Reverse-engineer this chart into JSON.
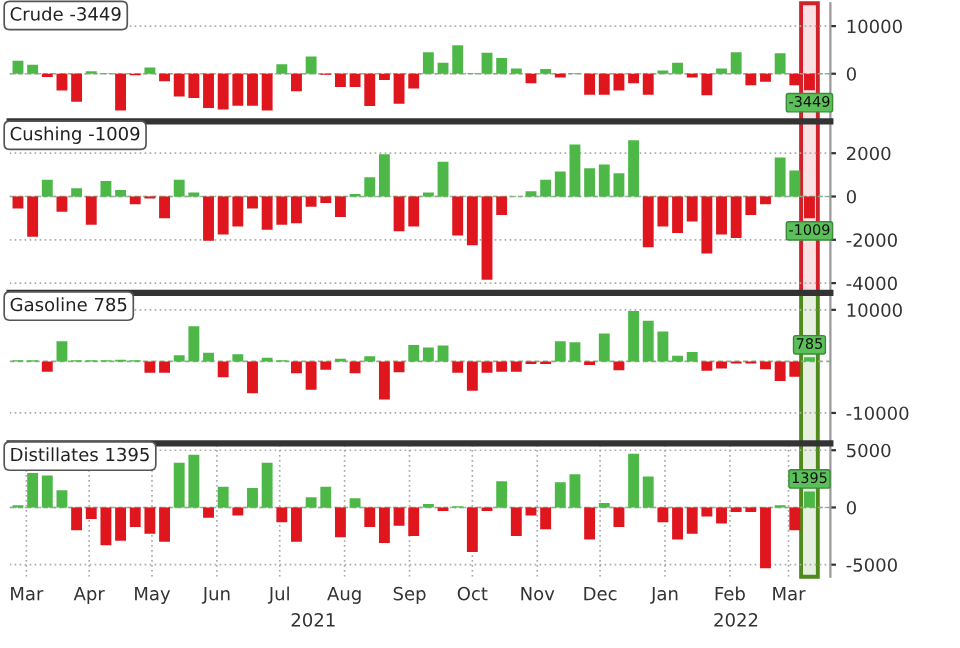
{
  "chart_data": [
    {
      "type": "bar",
      "title": "Crude -3449",
      "x": [
        "2021-03-12",
        "2021-03-19",
        "2021-03-26",
        "2021-04-02",
        "2021-04-09",
        "2021-04-16",
        "2021-04-23",
        "2021-04-30",
        "2021-05-07",
        "2021-05-14",
        "2021-05-21",
        "2021-05-28",
        "2021-06-04",
        "2021-06-11",
        "2021-06-18",
        "2021-06-25",
        "2021-07-02",
        "2021-07-09",
        "2021-07-16",
        "2021-07-23",
        "2021-07-30",
        "2021-08-06",
        "2021-08-13",
        "2021-08-20",
        "2021-08-27",
        "2021-09-03",
        "2021-09-10",
        "2021-09-17",
        "2021-09-24",
        "2021-10-01",
        "2021-10-08",
        "2021-10-15",
        "2021-10-22",
        "2021-10-29",
        "2021-11-05",
        "2021-11-12",
        "2021-11-19",
        "2021-11-26",
        "2021-12-03",
        "2021-12-10",
        "2021-12-17",
        "2021-12-24",
        "2021-12-31",
        "2022-01-07",
        "2022-01-14",
        "2022-01-21",
        "2022-01-28",
        "2022-02-04",
        "2022-02-11",
        "2022-02-18",
        "2022-02-25",
        "2022-03-04",
        "2022-03-11",
        "2022-03-18",
        "2022-03-25"
      ],
      "values": [
        2700,
        1900,
        -700,
        -3500,
        -5900,
        500,
        100,
        -7700,
        -300,
        1300,
        -1600,
        -4800,
        -5100,
        -7200,
        -7500,
        -6700,
        -6700,
        -7700,
        2000,
        -3700,
        3600,
        -200,
        -2800,
        -2800,
        -6800,
        -1300,
        -6300,
        -3100,
        4500,
        2300,
        6000,
        100,
        4400,
        3300,
        1100,
        -2000,
        1000,
        -800,
        100,
        -4400,
        -4400,
        -3500,
        -2000,
        -4400,
        700,
        2300,
        -800,
        -4500,
        1100,
        4500,
        -2400,
        -1700,
        4300,
        -2400,
        -3449
      ],
      "colors": [
        "#4db848",
        "#4db848",
        "#e0161e",
        "#e0161e",
        "#e0161e",
        "#4db848",
        "#4db848",
        "#e0161e",
        "#e0161e",
        "#4db848",
        "#e0161e",
        "#e0161e",
        "#e0161e",
        "#e0161e",
        "#e0161e",
        "#e0161e",
        "#e0161e",
        "#e0161e",
        "#4db848",
        "#e0161e",
        "#4db848",
        "#e0161e",
        "#e0161e",
        "#e0161e",
        "#e0161e",
        "#e0161e",
        "#e0161e",
        "#e0161e",
        "#4db848",
        "#4db848",
        "#4db848",
        "#4db848",
        "#4db848",
        "#4db848",
        "#4db848",
        "#e0161e",
        "#4db848",
        "#e0161e",
        "#4db848",
        "#e0161e",
        "#e0161e",
        "#e0161e",
        "#e0161e",
        "#e0161e",
        "#4db848",
        "#4db848",
        "#e0161e",
        "#e0161e",
        "#4db848",
        "#4db848",
        "#e0161e",
        "#e0161e",
        "#4db848",
        "#e0161e",
        "#e0161e"
      ],
      "value_labels": [
        null,
        null,
        null,
        null,
        null,
        null,
        null,
        null,
        null,
        null,
        null,
        null,
        null,
        null,
        null,
        null,
        null,
        null,
        null,
        null,
        null,
        null,
        null,
        null,
        null,
        null,
        null,
        null,
        null,
        null,
        null,
        null,
        null,
        null,
        null,
        null,
        null,
        null,
        null,
        null,
        null,
        null,
        null,
        null,
        null,
        null,
        null,
        null,
        null,
        null,
        null,
        null,
        null,
        null,
        "-3449"
      ],
      "xlim": [
        "2021-03-08",
        "2022-04-04"
      ],
      "ylim": [
        -10000,
        14800
      ],
      "yticks": [
        10000,
        0
      ],
      "tick_labels": "y",
      "grid": true,
      "ref_lines": [
        {
          "axis": "y",
          "value": 0,
          "color": "#88b088",
          "line_style": "dashed"
        }
      ],
      "bands": [
        {
          "axis": "x",
          "from": "2022-03-21",
          "to": "2022-03-29",
          "color": "#d0202a"
        }
      ]
    },
    {
      "type": "bar",
      "title": "Cushing -1009",
      "x": [
        "2021-03-12",
        "2021-03-19",
        "2021-03-26",
        "2021-04-02",
        "2021-04-09",
        "2021-04-16",
        "2021-04-23",
        "2021-04-30",
        "2021-05-07",
        "2021-05-14",
        "2021-05-21",
        "2021-05-28",
        "2021-06-04",
        "2021-06-11",
        "2021-06-18",
        "2021-06-25",
        "2021-07-02",
        "2021-07-09",
        "2021-07-16",
        "2021-07-23",
        "2021-07-30",
        "2021-08-06",
        "2021-08-13",
        "2021-08-20",
        "2021-08-27",
        "2021-09-03",
        "2021-09-10",
        "2021-09-17",
        "2021-09-24",
        "2021-10-01",
        "2021-10-08",
        "2021-10-15",
        "2021-10-22",
        "2021-10-29",
        "2021-11-05",
        "2021-11-12",
        "2021-11-19",
        "2021-11-26",
        "2021-12-03",
        "2021-12-10",
        "2021-12-17",
        "2021-12-24",
        "2021-12-31",
        "2022-01-07",
        "2022-01-14",
        "2022-01-21",
        "2022-01-28",
        "2022-02-04",
        "2022-02-11",
        "2022-02-18",
        "2022-02-25",
        "2022-03-04",
        "2022-03-11",
        "2022-03-18",
        "2022-03-25"
      ],
      "values": [
        -560,
        -1860,
        770,
        -710,
        380,
        -1300,
        710,
        300,
        -360,
        -90,
        -1010,
        770,
        180,
        -2040,
        -1750,
        -1390,
        -560,
        -1540,
        -1300,
        -1240,
        -470,
        -300,
        -950,
        120,
        890,
        1950,
        -1600,
        -1390,
        180,
        1600,
        -1800,
        -2250,
        -3850,
        -860,
        null,
        240,
        770,
        1150,
        2400,
        1300,
        1480,
        1070,
        2600,
        -2340,
        -1390,
        -1690,
        -1150,
        -2630,
        -1750,
        -1920,
        -860,
        -360,
        1800,
        1200,
        -1009
      ],
      "colors": [
        "#e0161e",
        "#e0161e",
        "#4db848",
        "#e0161e",
        "#4db848",
        "#e0161e",
        "#4db848",
        "#4db848",
        "#e0161e",
        "#e0161e",
        "#e0161e",
        "#4db848",
        "#4db848",
        "#e0161e",
        "#e0161e",
        "#e0161e",
        "#e0161e",
        "#e0161e",
        "#e0161e",
        "#e0161e",
        "#e0161e",
        "#e0161e",
        "#e0161e",
        "#4db848",
        "#4db848",
        "#4db848",
        "#e0161e",
        "#e0161e",
        "#4db848",
        "#4db848",
        "#e0161e",
        "#e0161e",
        "#e0161e",
        "#e0161e",
        "#4db848",
        "#4db848",
        "#4db848",
        "#4db848",
        "#4db848",
        "#4db848",
        "#4db848",
        "#4db848",
        "#4db848",
        "#e0161e",
        "#e0161e",
        "#e0161e",
        "#e0161e",
        "#e0161e",
        "#e0161e",
        "#e0161e",
        "#e0161e",
        "#e0161e",
        "#4db848",
        "#4db848",
        "#e0161e"
      ],
      "value_labels": [
        null,
        null,
        null,
        null,
        null,
        null,
        null,
        null,
        null,
        null,
        null,
        null,
        null,
        null,
        null,
        null,
        null,
        null,
        null,
        null,
        null,
        null,
        null,
        null,
        null,
        null,
        null,
        null,
        null,
        null,
        null,
        null,
        null,
        null,
        null,
        null,
        null,
        null,
        null,
        null,
        null,
        null,
        null,
        null,
        null,
        null,
        null,
        null,
        null,
        null,
        null,
        null,
        null,
        null,
        "-1009"
      ],
      "xlim": [
        "2021-03-08",
        "2022-04-04"
      ],
      "ylim": [
        -4450,
        3470
      ],
      "yticks": [
        2000,
        0,
        -2000,
        -4000
      ],
      "tick_labels": "y",
      "grid": true,
      "ref_lines": [
        {
          "axis": "y",
          "value": 0,
          "color": "#88b088",
          "line_style": "dashed"
        }
      ],
      "bands": [
        {
          "axis": "x",
          "from": "2022-03-21",
          "to": "2022-03-29",
          "color": "#d0202a"
        }
      ]
    },
    {
      "type": "bar",
      "title": "Gasoline 785",
      "x": [
        "2021-03-12",
        "2021-03-19",
        "2021-03-26",
        "2021-04-02",
        "2021-04-09",
        "2021-04-16",
        "2021-04-23",
        "2021-04-30",
        "2021-05-07",
        "2021-05-14",
        "2021-05-21",
        "2021-05-28",
        "2021-06-04",
        "2021-06-11",
        "2021-06-18",
        "2021-06-25",
        "2021-07-02",
        "2021-07-09",
        "2021-07-16",
        "2021-07-23",
        "2021-07-30",
        "2021-08-06",
        "2021-08-13",
        "2021-08-20",
        "2021-08-27",
        "2021-09-03",
        "2021-09-10",
        "2021-09-17",
        "2021-09-24",
        "2021-10-01",
        "2021-10-08",
        "2021-10-15",
        "2021-10-22",
        "2021-10-29",
        "2021-11-05",
        "2021-11-12",
        "2021-11-19",
        "2021-11-26",
        "2021-12-03",
        "2021-12-10",
        "2021-12-17",
        "2021-12-24",
        "2021-12-31",
        "2022-01-07",
        "2022-01-14",
        "2022-01-21",
        "2022-01-28",
        "2022-02-04",
        "2022-02-11",
        "2022-02-18",
        "2022-02-25",
        "2022-03-04",
        "2022-03-11",
        "2022-03-18",
        "2022-03-25"
      ],
      "values": [
        200,
        200,
        -2000,
        3900,
        200,
        200,
        200,
        300,
        200,
        -2200,
        -2200,
        1200,
        6800,
        1700,
        -3100,
        1400,
        -6200,
        700,
        200,
        -2300,
        -5500,
        -1600,
        500,
        -2300,
        1000,
        -7400,
        -2100,
        3200,
        2700,
        3100,
        -2200,
        -5700,
        -2200,
        -2000,
        -2000,
        -500,
        -500,
        3900,
        3700,
        -700,
        5400,
        -1700,
        9800,
        7900,
        5800,
        1100,
        1800,
        -1800,
        -1400,
        -400,
        -400,
        -1500,
        -3800,
        -3000,
        785
      ],
      "colors": [
        "#4db848",
        "#4db848",
        "#e0161e",
        "#4db848",
        "#4db848",
        "#4db848",
        "#4db848",
        "#4db848",
        "#4db848",
        "#e0161e",
        "#e0161e",
        "#4db848",
        "#4db848",
        "#4db848",
        "#e0161e",
        "#4db848",
        "#e0161e",
        "#4db848",
        "#4db848",
        "#e0161e",
        "#e0161e",
        "#e0161e",
        "#4db848",
        "#e0161e",
        "#4db848",
        "#e0161e",
        "#e0161e",
        "#4db848",
        "#4db848",
        "#4db848",
        "#e0161e",
        "#e0161e",
        "#e0161e",
        "#e0161e",
        "#e0161e",
        "#e0161e",
        "#e0161e",
        "#4db848",
        "#4db848",
        "#e0161e",
        "#4db848",
        "#e0161e",
        "#4db848",
        "#4db848",
        "#4db848",
        "#4db848",
        "#4db848",
        "#e0161e",
        "#e0161e",
        "#e0161e",
        "#e0161e",
        "#e0161e",
        "#e0161e",
        "#e0161e",
        "#4db848"
      ],
      "value_labels": [
        null,
        null,
        null,
        null,
        null,
        null,
        null,
        null,
        null,
        null,
        null,
        null,
        null,
        null,
        null,
        null,
        null,
        null,
        null,
        null,
        null,
        null,
        null,
        null,
        null,
        null,
        null,
        null,
        null,
        null,
        null,
        null,
        null,
        null,
        null,
        null,
        null,
        null,
        null,
        null,
        null,
        null,
        null,
        null,
        null,
        null,
        null,
        null,
        null,
        null,
        null,
        null,
        null,
        null,
        "785"
      ],
      "xlim": [
        "2021-03-08",
        "2022-04-04"
      ],
      "ylim": [
        -15900,
        13300
      ],
      "yticks": [
        10000,
        -10000
      ],
      "tick_labels": "y",
      "grid": true,
      "ref_lines": [
        {
          "axis": "y",
          "value": 0,
          "color": "#88b088",
          "line_style": "dashed"
        }
      ],
      "bands": [
        {
          "axis": "x",
          "from": "2022-03-21",
          "to": "2022-03-29",
          "color": "#4e8a1c"
        }
      ]
    },
    {
      "type": "bar",
      "title": "Distillates 1395",
      "x": [
        "2021-03-12",
        "2021-03-19",
        "2021-03-26",
        "2021-04-02",
        "2021-04-09",
        "2021-04-16",
        "2021-04-23",
        "2021-04-30",
        "2021-05-07",
        "2021-05-14",
        "2021-05-21",
        "2021-05-28",
        "2021-06-04",
        "2021-06-11",
        "2021-06-18",
        "2021-06-25",
        "2021-07-02",
        "2021-07-09",
        "2021-07-16",
        "2021-07-23",
        "2021-07-30",
        "2021-08-06",
        "2021-08-13",
        "2021-08-20",
        "2021-08-27",
        "2021-09-03",
        "2021-09-10",
        "2021-09-17",
        "2021-09-24",
        "2021-10-01",
        "2021-10-08",
        "2021-10-15",
        "2021-10-22",
        "2021-10-29",
        "2021-11-05",
        "2021-11-12",
        "2021-11-19",
        "2021-11-26",
        "2021-12-03",
        "2021-12-10",
        "2021-12-17",
        "2021-12-24",
        "2021-12-31",
        "2022-01-07",
        "2022-01-14",
        "2022-01-21",
        "2022-01-28",
        "2022-02-04",
        "2022-02-11",
        "2022-02-18",
        "2022-02-25",
        "2022-03-04",
        "2022-03-11",
        "2022-03-18",
        "2022-03-25"
      ],
      "values": [
        200,
        3000,
        2800,
        1500,
        -2000,
        -1000,
        -3300,
        -2900,
        -1700,
        -2300,
        -3000,
        3900,
        4600,
        -900,
        1800,
        -700,
        1700,
        3900,
        -1300,
        -3000,
        900,
        1800,
        -2600,
        800,
        -1700,
        -3100,
        -1600,
        -2500,
        300,
        -300,
        100,
        -3900,
        -300,
        2300,
        -2500,
        -700,
        -1900,
        2200,
        2900,
        -2800,
        400,
        -1700,
        4700,
        2700,
        -1300,
        -2800,
        -2300,
        -800,
        -1400,
        -400,
        -400,
        -5300,
        200,
        -2000,
        1395
      ],
      "colors": [
        "#4db848",
        "#4db848",
        "#4db848",
        "#4db848",
        "#e0161e",
        "#e0161e",
        "#e0161e",
        "#e0161e",
        "#e0161e",
        "#e0161e",
        "#e0161e",
        "#4db848",
        "#4db848",
        "#e0161e",
        "#4db848",
        "#e0161e",
        "#4db848",
        "#4db848",
        "#e0161e",
        "#e0161e",
        "#4db848",
        "#4db848",
        "#e0161e",
        "#4db848",
        "#e0161e",
        "#e0161e",
        "#e0161e",
        "#e0161e",
        "#4db848",
        "#e0161e",
        "#4db848",
        "#e0161e",
        "#e0161e",
        "#4db848",
        "#e0161e",
        "#e0161e",
        "#e0161e",
        "#4db848",
        "#4db848",
        "#e0161e",
        "#4db848",
        "#e0161e",
        "#4db848",
        "#4db848",
        "#e0161e",
        "#e0161e",
        "#e0161e",
        "#e0161e",
        "#e0161e",
        "#e0161e",
        "#e0161e",
        "#e0161e",
        "#4db848",
        "#e0161e",
        "#4db848"
      ],
      "value_labels": [
        null,
        null,
        null,
        null,
        null,
        null,
        null,
        null,
        null,
        null,
        null,
        null,
        null,
        null,
        null,
        null,
        null,
        null,
        null,
        null,
        null,
        null,
        null,
        null,
        null,
        null,
        null,
        null,
        null,
        null,
        null,
        null,
        null,
        null,
        null,
        null,
        null,
        null,
        null,
        null,
        null,
        null,
        null,
        null,
        null,
        null,
        null,
        null,
        null,
        null,
        null,
        null,
        null,
        null,
        "1395"
      ],
      "xlim": [
        "2021-03-08",
        "2022-04-04"
      ],
      "ylim": [
        -6050,
        5600
      ],
      "yticks": [
        5000,
        0,
        -5000
      ],
      "grid": true,
      "ref_lines": [
        {
          "axis": "y",
          "value": 0,
          "color": "#88b088",
          "line_style": "dashed"
        }
      ],
      "xticks": [
        {
          "value": "2021-03-16",
          "label": "Mar"
        },
        {
          "value": "2021-04-15",
          "label": "Apr"
        },
        {
          "value": "2021-05-15",
          "label": "May"
        },
        {
          "value": "2021-06-15",
          "label": "Jun"
        },
        {
          "value": "2021-07-15",
          "label": "Jul"
        },
        {
          "value": "2021-08-15",
          "label": "Aug"
        },
        {
          "value": "2021-09-15",
          "label": "Sep"
        },
        {
          "value": "2021-10-15",
          "label": "Oct"
        },
        {
          "value": "2021-11-15",
          "label": "Nov"
        },
        {
          "value": "2021-12-15",
          "label": "Dec"
        },
        {
          "value": "2022-01-15",
          "label": "Jan"
        },
        {
          "value": "2022-02-15",
          "label": "Feb"
        },
        {
          "value": "2022-03-15",
          "label": "Mar"
        }
      ],
      "annotations": [
        "2021",
        "2022"
      ],
      "bands": [
        {
          "axis": "x",
          "from": "2022-03-21",
          "to": "2022-03-29",
          "color": "#4e8a1c"
        }
      ]
    }
  ]
}
